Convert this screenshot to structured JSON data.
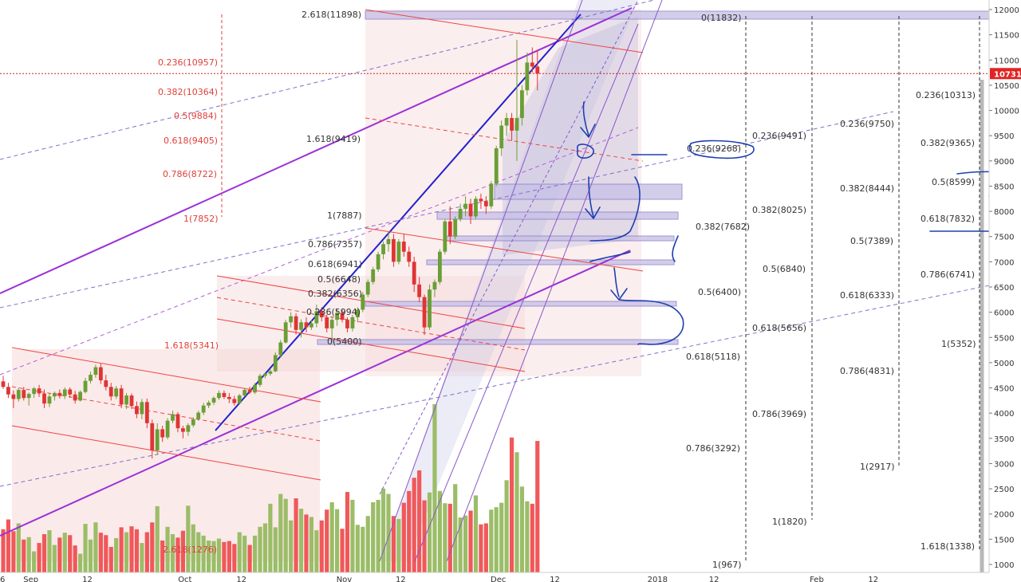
{
  "chart_data": {
    "type": "candlestick",
    "title": "",
    "xlabel": "",
    "ylabel": "",
    "ylim": [
      870,
      12150
    ],
    "y_scale": "linear",
    "y_ticks": [
      1000,
      1500,
      2000,
      2500,
      3000,
      3500,
      4000,
      4500,
      5000,
      5500,
      6000,
      6500,
      7000,
      7500,
      8000,
      8500,
      9000,
      9500,
      10000,
      10500,
      11000,
      11500,
      12000
    ],
    "x_ticks": [
      {
        "date": "2017-08-26",
        "label": "26"
      },
      {
        "date": "2017-09-01",
        "label": "Sep"
      },
      {
        "date": "2017-09-12",
        "label": "12"
      },
      {
        "date": "2017-10-01",
        "label": "Oct"
      },
      {
        "date": "2017-10-12",
        "label": "12"
      },
      {
        "date": "2017-11-01",
        "label": "Nov"
      },
      {
        "date": "2017-11-12",
        "label": "12"
      },
      {
        "date": "2017-12-01",
        "label": "Dec"
      },
      {
        "date": "2017-12-12",
        "label": "12"
      },
      {
        "date": "2018-01-01",
        "label": "2018"
      },
      {
        "date": "2018-01-12",
        "label": "12"
      },
      {
        "date": "2018-02-01",
        "label": "Feb"
      },
      {
        "date": "2018-02-12",
        "label": "12"
      }
    ],
    "x_range": [
      "2017-08-26",
      "2018-02-20"
    ],
    "last_price": "10731",
    "grid": false,
    "colors": {
      "up": "#6a9e36",
      "down": "#e03434",
      "vol_up": "#9bbd68",
      "vol_down": "#f0585a",
      "fib_red": "#e0403a",
      "fib_dark": "#333333",
      "trend_purple": "#9b30d8",
      "trend_blue": "#2020d0",
      "annotation": "#1f3fb0",
      "channel": "#ee4444"
    },
    "candles": [
      [
        4630,
        4740,
        4480,
        4520
      ],
      [
        4520,
        4600,
        4300,
        4370
      ],
      [
        4370,
        4450,
        4100,
        4280
      ],
      [
        4280,
        4500,
        4230,
        4460
      ],
      [
        4460,
        4520,
        4250,
        4300
      ],
      [
        4300,
        4410,
        4150,
        4380
      ],
      [
        4380,
        4520,
        4300,
        4490
      ],
      [
        4490,
        4560,
        4320,
        4390
      ],
      [
        4390,
        4470,
        4100,
        4190
      ],
      [
        4190,
        4390,
        4120,
        4330
      ],
      [
        4330,
        4430,
        4250,
        4400
      ],
      [
        4400,
        4470,
        4290,
        4340
      ],
      [
        4340,
        4510,
        4280,
        4470
      ],
      [
        4470,
        4510,
        4300,
        4370
      ],
      [
        4370,
        4440,
        4190,
        4250
      ],
      [
        4250,
        4450,
        4230,
        4420
      ],
      [
        4420,
        4700,
        4390,
        4640
      ],
      [
        4640,
        4820,
        4590,
        4760
      ],
      [
        4760,
        4960,
        4700,
        4910
      ],
      [
        4910,
        4980,
        4580,
        4650
      ],
      [
        4650,
        4760,
        4450,
        4520
      ],
      [
        4520,
        4600,
        4250,
        4330
      ],
      [
        4330,
        4540,
        4280,
        4490
      ],
      [
        4490,
        4560,
        4100,
        4170
      ],
      [
        4170,
        4400,
        4080,
        4350
      ],
      [
        4350,
        4390,
        4080,
        4140
      ],
      [
        4140,
        4230,
        3900,
        3980
      ],
      [
        3980,
        4280,
        3880,
        4220
      ],
      [
        4220,
        4290,
        3700,
        3800
      ],
      [
        3800,
        3870,
        3100,
        3260
      ],
      [
        3260,
        3800,
        3180,
        3680
      ],
      [
        3680,
        3750,
        3430,
        3520
      ],
      [
        3520,
        3900,
        3480,
        3850
      ],
      [
        3850,
        4050,
        3800,
        3980
      ],
      [
        3980,
        4020,
        3620,
        3700
      ],
      [
        3700,
        3750,
        3500,
        3630
      ],
      [
        3630,
        3800,
        3550,
        3760
      ],
      [
        3760,
        3920,
        3720,
        3880
      ],
      [
        3880,
        4050,
        3850,
        4010
      ],
      [
        4010,
        4200,
        3960,
        4150
      ],
      [
        4150,
        4250,
        4100,
        4210
      ],
      [
        4210,
        4330,
        4160,
        4300
      ],
      [
        4300,
        4450,
        4260,
        4400
      ],
      [
        4400,
        4450,
        4280,
        4320
      ],
      [
        4320,
        4400,
        4200,
        4280
      ],
      [
        4280,
        4340,
        4150,
        4200
      ],
      [
        4200,
        4380,
        4170,
        4350
      ],
      [
        4350,
        4500,
        4330,
        4460
      ],
      [
        4460,
        4520,
        4380,
        4410
      ],
      [
        4410,
        4600,
        4380,
        4560
      ],
      [
        4560,
        4780,
        4520,
        4740
      ],
      [
        4740,
        4810,
        4690,
        4780
      ],
      [
        4780,
        4880,
        4740,
        4830
      ],
      [
        4830,
        5200,
        4810,
        5150
      ],
      [
        5150,
        5450,
        5100,
        5400
      ],
      [
        5400,
        5850,
        5380,
        5800
      ],
      [
        5800,
        6000,
        5700,
        5920
      ],
      [
        5920,
        5980,
        5560,
        5650
      ],
      [
        5650,
        5860,
        5500,
        5800
      ],
      [
        5800,
        5900,
        5600,
        5700
      ],
      [
        5700,
        5850,
        5650,
        5780
      ],
      [
        5780,
        6150,
        5700,
        6020
      ],
      [
        6020,
        6100,
        5820,
        5900
      ],
      [
        5900,
        5950,
        5600,
        5680
      ],
      [
        5680,
        5900,
        5400,
        5850
      ],
      [
        5850,
        6050,
        5730,
        5990
      ],
      [
        5990,
        6050,
        5800,
        5850
      ],
      [
        5850,
        5900,
        5600,
        5680
      ],
      [
        5680,
        5950,
        5620,
        5900
      ],
      [
        5900,
        6100,
        5800,
        6050
      ],
      [
        6050,
        6400,
        6000,
        6350
      ],
      [
        6350,
        6650,
        6300,
        6600
      ],
      [
        6600,
        6900,
        6550,
        6850
      ],
      [
        6850,
        7200,
        6800,
        7150
      ],
      [
        7150,
        7400,
        7050,
        7350
      ],
      [
        7350,
        7600,
        7200,
        7450
      ],
      [
        7450,
        7550,
        6900,
        7000
      ],
      [
        7000,
        7450,
        6950,
        7400
      ],
      [
        7400,
        7550,
        7100,
        7200
      ],
      [
        7200,
        7300,
        6900,
        7000
      ],
      [
        7000,
        7100,
        6400,
        6550
      ],
      [
        6550,
        6700,
        6200,
        6300
      ],
      [
        6300,
        6350,
        5550,
        5700
      ],
      [
        5700,
        6550,
        5650,
        6450
      ],
      [
        6450,
        6650,
        6300,
        6600
      ],
      [
        6600,
        7250,
        6550,
        7200
      ],
      [
        7200,
        7850,
        7150,
        7800
      ],
      [
        7800,
        8100,
        7350,
        7500
      ],
      [
        7500,
        7900,
        7450,
        7850
      ],
      [
        7850,
        8150,
        7800,
        8050
      ],
      [
        8050,
        8300,
        7900,
        8150
      ],
      [
        8150,
        8250,
        7750,
        7900
      ],
      [
        7900,
        8300,
        7850,
        8250
      ],
      [
        8250,
        8350,
        8050,
        8200
      ],
      [
        8200,
        8300,
        7950,
        8100
      ],
      [
        8100,
        8600,
        8050,
        8550
      ],
      [
        8550,
        9300,
        8500,
        9250
      ],
      [
        9250,
        9800,
        9100,
        9700
      ],
      [
        9700,
        9950,
        9500,
        9850
      ],
      [
        9850,
        9950,
        9400,
        9600
      ],
      [
        9600,
        11400,
        9000,
        9850
      ],
      [
        9850,
        10500,
        9700,
        10400
      ],
      [
        10400,
        11150,
        10300,
        10950
      ],
      [
        10950,
        11250,
        10750,
        10870
      ],
      [
        10870,
        11200,
        10400,
        10731
      ]
    ],
    "volumes": [
      1780,
      1980,
      1740,
      1900,
      1570,
      1620,
      1330,
      1500,
      1680,
      1760,
      1460,
      1610,
      1710,
      1660,
      1450,
      1280,
      1890,
      1570,
      1920,
      1710,
      1660,
      1420,
      1600,
      1820,
      1720,
      1840,
      1780,
      1500,
      1720,
      1920,
      2250,
      1550,
      1830,
      1680,
      1610,
      1750,
      2260,
      1880,
      1720,
      1650,
      1550,
      1540,
      1590,
      1520,
      1540,
      1480,
      1720,
      1650,
      1460,
      1650,
      1830,
      1900,
      2300,
      1820,
      2500,
      2400,
      1960,
      2410,
      2200,
      2080,
      2030,
      1760,
      1960,
      2180,
      2330,
      2190,
      1790,
      2540,
      2380,
      1870,
      1830,
      2050,
      2330,
      2380,
      2610,
      2500,
      2050,
      1990,
      2320,
      2560,
      2830,
      2980,
      2370,
      2530,
      4330,
      2560,
      2310,
      2300,
      2700,
      2020,
      2060,
      2160,
      2470,
      1880,
      1900,
      2180,
      2230,
      2320,
      2780,
      3650,
      3350,
      2650,
      2350,
      2300,
      3580
    ],
    "volume_bar_heights": [
      {
        "x": 0,
        "h": 52
      },
      {
        "x": 1,
        "h": 60
      }
    ],
    "fib_levels": [
      {
        "label": "0.236(10957)",
        "value": 10957,
        "color": "red"
      },
      {
        "label": "0.382(10364)",
        "value": 10364,
        "color": "red"
      },
      {
        "label": "0.5(9884)",
        "value": 9884,
        "color": "red"
      },
      {
        "label": "0.618(9405)",
        "value": 9405,
        "color": "red"
      },
      {
        "label": "0.786(8722)",
        "value": 8722,
        "color": "red"
      },
      {
        "label": "1(7852)",
        "value": 7852,
        "color": "red"
      },
      {
        "label": "2.618(11898)",
        "value": 11898,
        "color": "dark"
      },
      {
        "label": "1.618(9419)",
        "value": 9419,
        "color": "dark"
      },
      {
        "label": "1(7887)",
        "value": 7887,
        "color": "dark"
      },
      {
        "label": "0.786(7357)",
        "value": 7357,
        "color": "dark"
      },
      {
        "label": "0.618(6941)",
        "value": 6941,
        "color": "dark"
      },
      {
        "label": "0.5(6648)",
        "value": 6648,
        "color": "dark"
      },
      {
        "label": "0.382(6356)",
        "value": 6356,
        "color": "dark"
      },
      {
        "label": "0.236(5994)",
        "value": 5994,
        "color": "dark"
      },
      {
        "label": "0(5400)",
        "value": 5400,
        "color": "dark"
      },
      {
        "label": "1.618(5341)",
        "value": 5341,
        "color": "red"
      },
      {
        "label": "2.618(1276)",
        "value": 1276,
        "color": "red"
      },
      {
        "label": "0(11832)",
        "value": 11832,
        "color": "dark"
      },
      {
        "label": "0.236(9268)",
        "value": 9268,
        "color": "dark"
      },
      {
        "label": "0.382(7682)",
        "value": 7682,
        "color": "dark"
      },
      {
        "label": "0.5(6400)",
        "value": 6400,
        "color": "dark"
      },
      {
        "label": "0.618(5118)",
        "value": 5118,
        "color": "dark"
      },
      {
        "label": "0.786(3292)",
        "value": 3292,
        "color": "dark"
      },
      {
        "label": "1(967)",
        "value": 967,
        "color": "dark"
      },
      {
        "label": "0.236(9491)",
        "value": 9491,
        "color": "dark"
      },
      {
        "label": "0.382(8025)",
        "value": 8025,
        "color": "dark"
      },
      {
        "label": "0.5(6840)",
        "value": 6840,
        "color": "dark"
      },
      {
        "label": "0.618(5656)",
        "value": 5656,
        "color": "dark"
      },
      {
        "label": "0.786(3969)",
        "value": 3969,
        "color": "dark"
      },
      {
        "label": "1(1820)",
        "value": 1820,
        "color": "dark"
      },
      {
        "label": "0.236(9750)",
        "value": 9750,
        "color": "dark"
      },
      {
        "label": "0.382(8444)",
        "value": 8444,
        "color": "dark"
      },
      {
        "label": "0.5(7389)",
        "value": 7389,
        "color": "dark"
      },
      {
        "label": "0.618(6333)",
        "value": 6333,
        "color": "dark"
      },
      {
        "label": "0.786(4831)",
        "value": 4831,
        "color": "dark"
      },
      {
        "label": "1(2917)",
        "value": 2917,
        "color": "dark"
      },
      {
        "label": "0.236(10313)",
        "value": 10313,
        "color": "dark"
      },
      {
        "label": "0.382(9365)",
        "value": 9365,
        "color": "dark"
      },
      {
        "label": "0.5(8599)",
        "value": 8599,
        "color": "dark"
      },
      {
        "label": "0.618(7832)",
        "value": 7832,
        "color": "dark"
      },
      {
        "label": "0.786(6741)",
        "value": 6741,
        "color": "dark"
      },
      {
        "label": "1(5352)",
        "value": 5352,
        "color": "dark"
      },
      {
        "label": "1.618(1338)",
        "value": 1338,
        "color": "dark"
      }
    ]
  }
}
